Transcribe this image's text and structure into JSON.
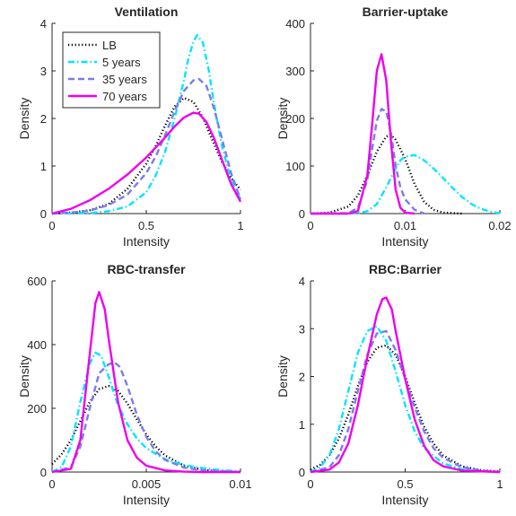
{
  "chart_data": [
    {
      "type": "line",
      "title": "Ventilation",
      "xlabel": "Intensity",
      "ylabel": "Density",
      "xlim": [
        0,
        1
      ],
      "ylim": [
        0,
        4
      ],
      "xticks": [
        0,
        0.5,
        1
      ],
      "xtick_labels": [
        "0",
        "0.5",
        "1"
      ],
      "yticks": [
        0,
        1,
        2,
        3,
        4
      ],
      "ytick_labels": [
        "0",
        "1",
        "2",
        "3",
        "4"
      ],
      "legend": "top-left",
      "series": [
        {
          "name": "LB",
          "style": "dotted",
          "color": "#000000",
          "x": [
            0,
            0.1,
            0.2,
            0.3,
            0.4,
            0.5,
            0.55,
            0.6,
            0.65,
            0.7,
            0.75,
            0.8,
            0.85,
            0.9,
            0.95,
            1.0
          ],
          "y": [
            0,
            0.02,
            0.07,
            0.2,
            0.52,
            1.05,
            1.42,
            1.85,
            2.25,
            2.43,
            2.35,
            2.02,
            1.55,
            1.1,
            0.75,
            0.5
          ]
        },
        {
          "name": "5 years",
          "style": "dashdot",
          "color": "#00e5ff",
          "x": [
            0,
            0.2,
            0.3,
            0.4,
            0.5,
            0.55,
            0.6,
            0.65,
            0.7,
            0.72,
            0.75,
            0.77,
            0.8,
            0.83,
            0.86,
            0.9,
            0.95,
            1.0
          ],
          "y": [
            0,
            0.01,
            0.05,
            0.15,
            0.45,
            0.8,
            1.3,
            2.0,
            2.8,
            3.2,
            3.62,
            3.75,
            3.6,
            3.05,
            2.3,
            1.45,
            0.7,
            0.3
          ]
        },
        {
          "name": "35 years",
          "style": "dashed",
          "color": "#7b7bf0",
          "x": [
            0,
            0.1,
            0.2,
            0.3,
            0.4,
            0.5,
            0.55,
            0.6,
            0.65,
            0.7,
            0.75,
            0.78,
            0.82,
            0.86,
            0.9,
            0.95,
            1.0
          ],
          "y": [
            0,
            0.02,
            0.06,
            0.18,
            0.4,
            0.85,
            1.2,
            1.65,
            2.15,
            2.58,
            2.8,
            2.83,
            2.68,
            2.2,
            1.6,
            0.85,
            0.3
          ]
        },
        {
          "name": "70 years",
          "style": "solid",
          "color": "#ee00ee",
          "x": [
            0,
            0.1,
            0.2,
            0.3,
            0.4,
            0.5,
            0.6,
            0.65,
            0.7,
            0.75,
            0.78,
            0.82,
            0.86,
            0.9,
            0.95,
            1.0
          ],
          "y": [
            0,
            0.1,
            0.28,
            0.52,
            0.82,
            1.18,
            1.6,
            1.83,
            2.02,
            2.12,
            2.1,
            1.92,
            1.58,
            1.15,
            0.62,
            0.25
          ]
        }
      ]
    },
    {
      "type": "line",
      "title": "Barrier-uptake",
      "xlabel": "Intensity",
      "ylabel": "Density",
      "xlim": [
        0,
        0.02
      ],
      "ylim": [
        0,
        400
      ],
      "xticks": [
        0,
        0.01,
        0.02
      ],
      "xtick_labels": [
        "0",
        "0.01",
        "0.02"
      ],
      "yticks": [
        0,
        100,
        200,
        300,
        400
      ],
      "ytick_labels": [
        "0",
        "100",
        "200",
        "300",
        "400"
      ],
      "series": [
        {
          "name": "LB",
          "style": "dotted",
          "color": "#000000",
          "x": [
            0,
            0.002,
            0.004,
            0.005,
            0.006,
            0.007,
            0.008,
            0.0085,
            0.009,
            0.01,
            0.011,
            0.012,
            0.013,
            0.014,
            0.016
          ],
          "y": [
            0,
            2,
            15,
            38,
            80,
            130,
            162,
            165,
            155,
            115,
            62,
            25,
            8,
            2,
            0
          ]
        },
        {
          "name": "5 years",
          "style": "dashdot",
          "color": "#00e5ff",
          "x": [
            0,
            0.004,
            0.005,
            0.006,
            0.007,
            0.008,
            0.009,
            0.0095,
            0.01,
            0.011,
            0.012,
            0.013,
            0.014,
            0.015,
            0.016,
            0.017,
            0.018,
            0.019,
            0.02
          ],
          "y": [
            0,
            0,
            1,
            5,
            20,
            55,
            95,
            112,
            120,
            123,
            112,
            95,
            75,
            54,
            35,
            20,
            10,
            4,
            1
          ]
        },
        {
          "name": "35 years",
          "style": "dashed",
          "color": "#7b7bf0",
          "x": [
            0,
            0.004,
            0.005,
            0.006,
            0.0065,
            0.007,
            0.0075,
            0.008,
            0.0085,
            0.009,
            0.0095,
            0.01,
            0.011,
            0.012
          ],
          "y": [
            0,
            1,
            12,
            70,
            135,
            195,
            220,
            215,
            170,
            100,
            55,
            30,
            8,
            0
          ]
        },
        {
          "name": "70 years",
          "style": "solid",
          "color": "#ee00ee",
          "x": [
            0,
            0.004,
            0.005,
            0.006,
            0.0065,
            0.007,
            0.0075,
            0.008,
            0.0085,
            0.009,
            0.0095,
            0.01,
            0.011
          ],
          "y": [
            0,
            0,
            5,
            80,
            185,
            300,
            335,
            280,
            150,
            50,
            12,
            2,
            0
          ]
        }
      ]
    },
    {
      "type": "line",
      "title": "RBC-transfer",
      "xlabel": "Intensity",
      "ylabel": "Density",
      "xlim": [
        0,
        0.01
      ],
      "ylim": [
        0,
        600
      ],
      "xticks": [
        0,
        0.005,
        0.01
      ],
      "xtick_labels": [
        "0",
        "0.005",
        "0.01"
      ],
      "yticks": [
        0,
        200,
        400,
        600
      ],
      "ytick_labels": [
        "0",
        "200",
        "400",
        "600"
      ],
      "series": [
        {
          "name": "LB",
          "style": "dotted",
          "color": "#000000",
          "x": [
            0,
            0.0005,
            0.001,
            0.0015,
            0.002,
            0.0025,
            0.003,
            0.0035,
            0.004,
            0.0045,
            0.005,
            0.0055,
            0.006,
            0.007,
            0.008,
            0.009,
            0.01
          ],
          "y": [
            25,
            55,
            100,
            160,
            220,
            260,
            270,
            255,
            215,
            165,
            118,
            80,
            52,
            20,
            7,
            2,
            0
          ]
        },
        {
          "name": "5 years",
          "style": "dashdot",
          "color": "#00e5ff",
          "x": [
            0,
            0.0005,
            0.001,
            0.0015,
            0.002,
            0.0023,
            0.0026,
            0.003,
            0.0035,
            0.004,
            0.0045,
            0.005,
            0.006,
            0.007,
            0.008,
            0.009,
            0.01
          ],
          "y": [
            0,
            15,
            80,
            220,
            340,
            375,
            365,
            300,
            210,
            150,
            105,
            75,
            40,
            22,
            12,
            6,
            2
          ]
        },
        {
          "name": "35 years",
          "style": "dashed",
          "color": "#7b7bf0",
          "x": [
            0,
            0.001,
            0.0015,
            0.002,
            0.0025,
            0.003,
            0.0033,
            0.0036,
            0.004,
            0.0045,
            0.005,
            0.0055,
            0.006,
            0.007,
            0.008,
            0.01
          ],
          "y": [
            0,
            15,
            80,
            200,
            310,
            338,
            345,
            330,
            270,
            180,
            110,
            65,
            38,
            14,
            5,
            0
          ]
        },
        {
          "name": "70 years",
          "style": "solid",
          "color": "#ee00ee",
          "x": [
            0,
            0.001,
            0.0015,
            0.002,
            0.0023,
            0.0025,
            0.0028,
            0.003,
            0.0035,
            0.004,
            0.0045,
            0.005,
            0.006,
            0.007,
            0.008,
            0.01
          ],
          "y": [
            0,
            10,
            100,
            370,
            530,
            565,
            510,
            420,
            220,
            100,
            45,
            20,
            5,
            1,
            0,
            0
          ]
        }
      ]
    },
    {
      "type": "line",
      "title": "RBC:Barrier",
      "xlabel": "Intensity",
      "ylabel": "Density",
      "xlim": [
        0,
        1
      ],
      "ylim": [
        0,
        4
      ],
      "xticks": [
        0,
        0.5,
        1
      ],
      "xtick_labels": [
        "0",
        "0.5",
        "1"
      ],
      "yticks": [
        0,
        1,
        2,
        3,
        4
      ],
      "ytick_labels": [
        "0",
        "1",
        "2",
        "3",
        "4"
      ],
      "series": [
        {
          "name": "LB",
          "style": "dotted",
          "color": "#000000",
          "x": [
            0,
            0.05,
            0.1,
            0.15,
            0.2,
            0.25,
            0.3,
            0.35,
            0.4,
            0.45,
            0.5,
            0.55,
            0.6,
            0.65,
            0.7,
            0.8,
            0.9,
            1.0
          ],
          "y": [
            0.05,
            0.15,
            0.35,
            0.7,
            1.2,
            1.8,
            2.3,
            2.6,
            2.65,
            2.45,
            2.0,
            1.45,
            0.95,
            0.6,
            0.35,
            0.12,
            0.04,
            0.01
          ]
        },
        {
          "name": "5 years",
          "style": "dashdot",
          "color": "#00e5ff",
          "x": [
            0,
            0.05,
            0.1,
            0.15,
            0.2,
            0.25,
            0.3,
            0.35,
            0.4,
            0.45,
            0.5,
            0.55,
            0.6,
            0.7,
            0.8,
            0.9,
            1.0
          ],
          "y": [
            0,
            0.1,
            0.35,
            0.9,
            1.7,
            2.5,
            2.95,
            3.05,
            2.75,
            2.1,
            1.4,
            0.85,
            0.5,
            0.18,
            0.06,
            0.02,
            0
          ]
        },
        {
          "name": "35 years",
          "style": "dashed",
          "color": "#7b7bf0",
          "x": [
            0,
            0.1,
            0.15,
            0.2,
            0.25,
            0.3,
            0.35,
            0.4,
            0.45,
            0.5,
            0.55,
            0.6,
            0.65,
            0.7,
            0.8,
            0.9,
            1.0
          ],
          "y": [
            0,
            0.1,
            0.35,
            0.9,
            1.7,
            2.45,
            2.9,
            2.95,
            2.55,
            1.95,
            1.35,
            0.85,
            0.5,
            0.3,
            0.1,
            0.03,
            0
          ]
        },
        {
          "name": "70 years",
          "style": "solid",
          "color": "#ee00ee",
          "x": [
            0,
            0.1,
            0.15,
            0.2,
            0.25,
            0.3,
            0.35,
            0.38,
            0.4,
            0.43,
            0.45,
            0.5,
            0.55,
            0.6,
            0.65,
            0.7,
            0.8,
            1.0
          ],
          "y": [
            0,
            0.05,
            0.2,
            0.6,
            1.4,
            2.4,
            3.3,
            3.62,
            3.65,
            3.4,
            2.95,
            1.95,
            1.1,
            0.55,
            0.25,
            0.12,
            0.03,
            0
          ]
        }
      ]
    }
  ]
}
